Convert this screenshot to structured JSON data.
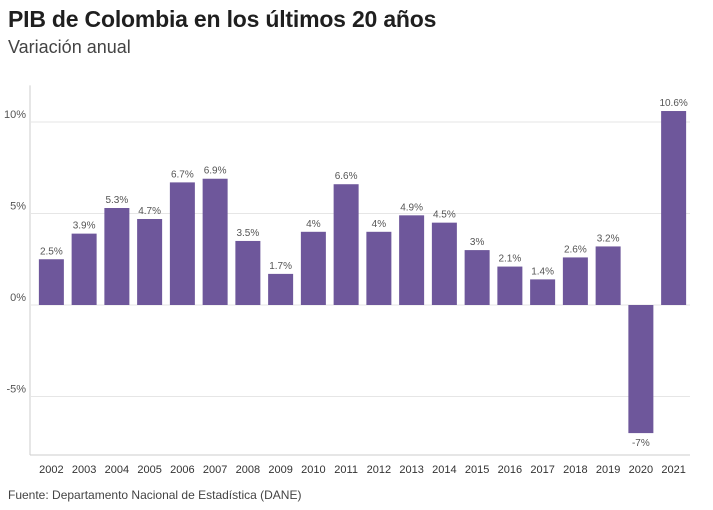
{
  "header": {
    "title": "PIB de Colombia en los últimos 20 años",
    "subtitle": "Variación anual"
  },
  "footer": {
    "source": "Fuente: Departamento Nacional de Estadística (DANE)"
  },
  "colors": {
    "bar": "#6e579b",
    "grid": "#e6e6e6",
    "axis_text": "#555555"
  },
  "chart_data": {
    "type": "bar",
    "categories": [
      "2002",
      "2003",
      "2004",
      "2005",
      "2006",
      "2007",
      "2008",
      "2009",
      "2010",
      "2011",
      "2012",
      "2013",
      "2014",
      "2015",
      "2016",
      "2017",
      "2018",
      "2019",
      "2020",
      "2021"
    ],
    "values": [
      2.5,
      3.9,
      5.3,
      4.7,
      6.7,
      6.9,
      3.5,
      1.7,
      4,
      6.6,
      4,
      4.9,
      4.5,
      3,
      2.1,
      1.4,
      2.6,
      3.2,
      -7,
      10.6
    ],
    "value_labels": [
      "2.5%",
      "3.9%",
      "5.3%",
      "4.7%",
      "6.7%",
      "6.9%",
      "3.5%",
      "1.7%",
      "4%",
      "6.6%",
      "4%",
      "4.9%",
      "4.5%",
      "3%",
      "2.1%",
      "1.4%",
      "2.6%",
      "3.2%",
      "-7%",
      "10.6%"
    ],
    "yticks": [
      10,
      5,
      0,
      -5
    ],
    "ytick_labels": [
      "10%",
      "5%",
      "0%",
      "-5%"
    ],
    "ylim": [
      -8.2,
      12
    ],
    "grid": true
  }
}
